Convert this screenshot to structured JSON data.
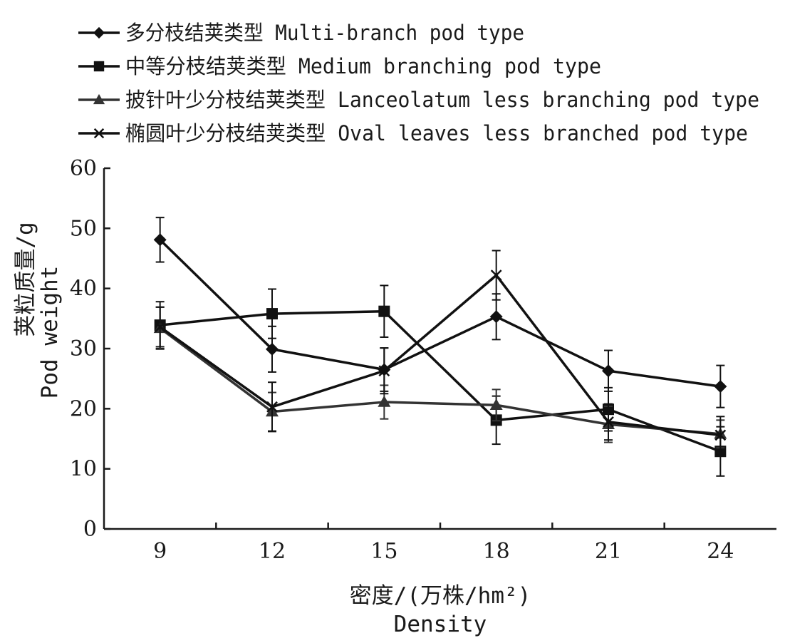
{
  "chart_data": {
    "type": "line",
    "title": "",
    "xlabel": [
      "密度/(万株/hm²)",
      "Density"
    ],
    "ylabel": [
      "荚粒质量/g",
      "Pod weight"
    ],
    "ylim": [
      0,
      60
    ],
    "yticks": [
      "0",
      "10",
      "20",
      "30",
      "40",
      "50",
      "60"
    ],
    "categories": [
      "9",
      "12",
      "15",
      "18",
      "21",
      "24"
    ],
    "grid": false,
    "legend_position": "top",
    "error_bars": true,
    "series": [
      {
        "name": "多分枝结荚类型 Multi-branch pod type",
        "marker": "diamond",
        "color": "#111111",
        "values": [
          48.1,
          29.9,
          26.5,
          35.3,
          26.3,
          23.7
        ],
        "errors": [
          3.7,
          3.8,
          3.6,
          3.8,
          3.4,
          3.5
        ]
      },
      {
        "name": "中等分枝结荚类型 Medium branching pod type",
        "marker": "square",
        "color": "#111111",
        "values": [
          33.9,
          35.8,
          36.2,
          18.1,
          19.9,
          12.9
        ],
        "errors": [
          3.9,
          4.1,
          4.3,
          4.0,
          3.6,
          4.1
        ]
      },
      {
        "name": "披针叶少分枝结荚类型 Lanceolatum less branching pod type",
        "marker": "triangle",
        "color": "#333333",
        "values": [
          33.4,
          19.5,
          21.1,
          20.6,
          17.4,
          15.8
        ],
        "errors": [
          3.5,
          3.2,
          2.8,
          2.6,
          3.0,
          2.3
        ]
      },
      {
        "name": "椭圆叶少分枝结荚类型 Oval leaves less branched pod type",
        "marker": "x",
        "color": "#111111",
        "values": [
          33.6,
          20.3,
          26.3,
          42.2,
          17.8,
          15.6
        ],
        "errors": [
          3.3,
          4.1,
          3.8,
          4.1,
          3.0,
          3.1
        ]
      }
    ]
  }
}
